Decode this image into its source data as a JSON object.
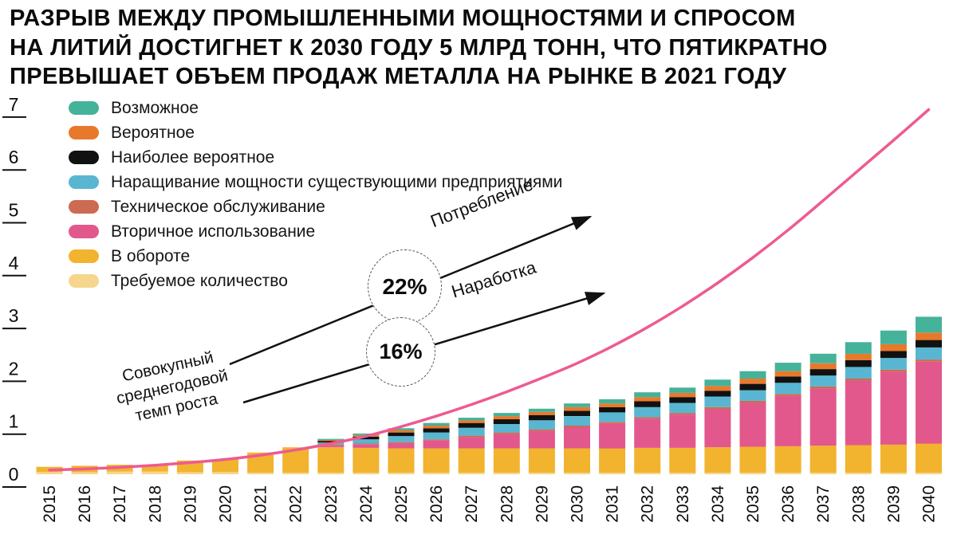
{
  "title": {
    "lines": [
      "РАЗРЫВ МЕЖДУ ПРОМЫШЛЕННЫМИ МОЩНОСТЯМИ И СПРОСОМ",
      "НА ЛИТИЙ ДОСТИГНЕТ К 2030 ГОДУ 5 МЛРД ТОНН, ЧТО ПЯТИКРАТНО",
      "ПРЕВЫШАЕТ ОБЪЕМ ПРОДАЖ МЕТАЛЛА НА РЫНКЕ В 2021 ГОДУ"
    ]
  },
  "annotations": {
    "cagr_label": "Совокупный среднегодовой темп роста",
    "consumption_rate": "22%",
    "production_rate": "16%",
    "consumption_label": "Потребление",
    "production_label": "Наработка"
  },
  "colors": {
    "line": "#ee5a92",
    "text": "#0b0b0b",
    "arrow": "#111111"
  },
  "chart_data": {
    "type": "bar",
    "subtype": "stacked-bar-with-line",
    "title": "",
    "xlabel": "",
    "ylabel": "",
    "ylim": [
      0,
      7
    ],
    "yticks": [
      0,
      1,
      2,
      3,
      4,
      5,
      6,
      7
    ],
    "grid": false,
    "legend_position": "top-left",
    "categories": [
      2015,
      2016,
      2017,
      2018,
      2019,
      2020,
      2021,
      2022,
      2023,
      2024,
      2025,
      2026,
      2027,
      2028,
      2029,
      2030,
      2031,
      2032,
      2033,
      2034,
      2035,
      2036,
      2037,
      2038,
      2039,
      2040
    ],
    "series": [
      {
        "name": "Возможное",
        "color": "#45b29a",
        "values": [
          0,
          0,
          0,
          0,
          0,
          0,
          0,
          0,
          0.02,
          0.03,
          0.04,
          0.05,
          0.05,
          0.06,
          0.06,
          0.07,
          0.08,
          0.09,
          0.1,
          0.12,
          0.14,
          0.16,
          0.18,
          0.22,
          0.26,
          0.3
        ]
      },
      {
        "name": "Вероятное",
        "color": "#e8792a",
        "values": [
          0,
          0,
          0,
          0,
          0,
          0,
          0,
          0,
          0.02,
          0.03,
          0.04,
          0.05,
          0.05,
          0.06,
          0.06,
          0.07,
          0.07,
          0.08,
          0.08,
          0.09,
          0.1,
          0.1,
          0.11,
          0.12,
          0.13,
          0.14
        ]
      },
      {
        "name": "Наиболее вероятное",
        "color": "#111111",
        "values": [
          0,
          0,
          0,
          0,
          0,
          0,
          0,
          0,
          0.03,
          0.05,
          0.07,
          0.08,
          0.09,
          0.09,
          0.1,
          0.1,
          0.1,
          0.11,
          0.11,
          0.11,
          0.12,
          0.12,
          0.12,
          0.13,
          0.13,
          0.14
        ]
      },
      {
        "name": "Наращивание мощности существующими предприятиями",
        "color": "#58b6d2",
        "values": [
          0,
          0,
          0,
          0,
          0,
          0,
          0,
          0,
          0.04,
          0.08,
          0.11,
          0.13,
          0.15,
          0.16,
          0.17,
          0.18,
          0.18,
          0.19,
          0.19,
          0.2,
          0.2,
          0.21,
          0.21,
          0.22,
          0.22,
          0.23
        ]
      },
      {
        "name": "Техническое обслуживание",
        "color": "#cd6b52",
        "values": [
          0,
          0,
          0,
          0,
          0,
          0,
          0,
          0,
          0.02,
          0.02,
          0.02,
          0.02,
          0.03,
          0.03,
          0.03,
          0.03,
          0.03,
          0.03,
          0.03,
          0.04,
          0.04,
          0.04,
          0.04,
          0.04,
          0.04,
          0.04
        ]
      },
      {
        "name": "Вторичное использование",
        "color": "#e2588c",
        "values": [
          0,
          0,
          0,
          0,
          0,
          0,
          0,
          0,
          0.03,
          0.06,
          0.1,
          0.15,
          0.21,
          0.27,
          0.33,
          0.4,
          0.47,
          0.55,
          0.63,
          0.72,
          0.83,
          0.95,
          1.08,
          1.22,
          1.38,
          1.55
        ]
      },
      {
        "name": "В обороте",
        "color": "#f2b32e",
        "values": [
          0.1,
          0.12,
          0.13,
          0.13,
          0.22,
          0.24,
          0.38,
          0.48,
          0.48,
          0.47,
          0.46,
          0.46,
          0.46,
          0.46,
          0.46,
          0.46,
          0.46,
          0.47,
          0.47,
          0.48,
          0.49,
          0.5,
          0.51,
          0.52,
          0.53,
          0.55
        ]
      },
      {
        "name": "Требуемое количество",
        "color": "#f6d68c",
        "values": [
          0.04,
          0.04,
          0.05,
          0.05,
          0.04,
          0.04,
          0.03,
          0.03,
          0.03,
          0.03,
          0.03,
          0.03,
          0.03,
          0.03,
          0.03,
          0.03,
          0.03,
          0.03,
          0.03,
          0.03,
          0.03,
          0.03,
          0.03,
          0.03,
          0.03,
          0.03
        ]
      }
    ],
    "line_series": {
      "name": "Потребление",
      "color": "#ee5a92",
      "values": [
        0.08,
        0.1,
        0.13,
        0.17,
        0.22,
        0.28,
        0.36,
        0.46,
        0.58,
        0.72,
        0.9,
        1.1,
        1.32,
        1.56,
        1.82,
        2.1,
        2.42,
        2.78,
        3.18,
        3.62,
        4.1,
        4.62,
        5.18,
        5.75,
        6.32,
        6.9
      ]
    }
  }
}
